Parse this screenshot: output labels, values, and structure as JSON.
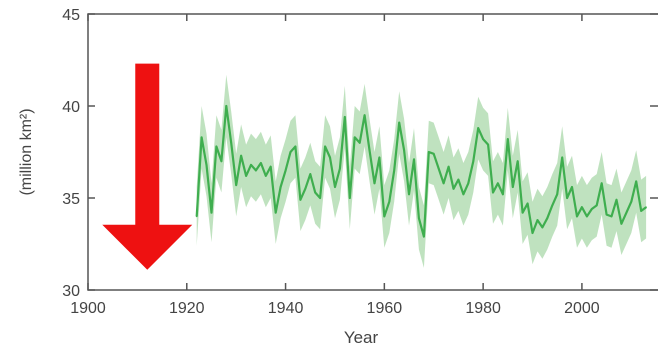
{
  "chart_data": {
    "type": "line",
    "xlabel": "Year",
    "ylabel": "(million km²)",
    "xlim": [
      1900,
      2015
    ],
    "ylim": [
      30,
      45
    ],
    "x_ticks": [
      1900,
      1920,
      1940,
      1960,
      1980,
      2000
    ],
    "y_ticks": [
      30,
      35,
      40,
      45
    ],
    "grid": false,
    "line_color": "#3fae4f",
    "band_color": "#a9d8a9",
    "arrow_color": "#ee1111",
    "series": [
      {
        "x": [
          1922,
          1923,
          1924,
          1925,
          1926,
          1927,
          1928,
          1929,
          1930,
          1931,
          1932,
          1933,
          1934,
          1935,
          1936,
          1937,
          1938,
          1939,
          1940,
          1941,
          1942,
          1943,
          1944,
          1945,
          1946,
          1947,
          1948,
          1949,
          1950,
          1951,
          1952,
          1953,
          1954,
          1955,
          1956,
          1957,
          1958,
          1959,
          1960,
          1961,
          1962,
          1963,
          1964,
          1965,
          1966,
          1967,
          1968,
          1969,
          1970,
          1971,
          1972,
          1973,
          1974,
          1975,
          1976,
          1977,
          1978,
          1979,
          1980,
          1981,
          1982,
          1983,
          1984,
          1985,
          1986,
          1987,
          1988,
          1989,
          1990,
          1991,
          1992,
          1993,
          1994,
          1995,
          1996,
          1997,
          1998,
          1999,
          2000,
          2001,
          2002,
          2003,
          2004,
          2005,
          2006,
          2007,
          2008,
          2009,
          2010,
          2011,
          2012,
          2013
        ],
        "y": [
          34.0,
          38.3,
          36.8,
          34.2,
          37.8,
          37.0,
          40.0,
          38.0,
          35.7,
          37.3,
          36.2,
          36.8,
          36.5,
          36.9,
          36.2,
          36.7,
          34.2,
          35.6,
          36.5,
          37.5,
          37.8,
          34.9,
          35.5,
          36.3,
          35.3,
          35.0,
          37.8,
          37.2,
          35.6,
          36.6,
          39.4,
          35.0,
          38.3,
          38.0,
          39.5,
          37.6,
          35.8,
          37.2,
          34.0,
          34.8,
          36.5,
          39.1,
          37.6,
          35.2,
          37.1,
          33.9,
          32.9,
          37.5,
          37.4,
          36.6,
          35.8,
          36.7,
          35.5,
          36.0,
          35.2,
          35.8,
          37.0,
          38.8,
          38.2,
          37.9,
          35.3,
          35.8,
          35.2,
          38.2,
          35.6,
          37.0,
          34.2,
          34.7,
          33.1,
          33.8,
          33.4,
          33.9,
          34.6,
          35.2,
          37.2,
          35.0,
          35.6,
          34.0,
          34.5,
          34.0,
          34.4,
          34.6,
          35.8,
          34.1,
          34.0,
          34.9,
          33.6,
          34.2,
          34.8,
          35.9,
          34.3,
          34.5
        ],
        "low": [
          32.4,
          36.6,
          35.1,
          32.6,
          36.1,
          35.3,
          38.3,
          36.3,
          34.0,
          35.6,
          34.5,
          35.1,
          34.8,
          35.2,
          34.5,
          35.0,
          32.5,
          33.9,
          34.8,
          35.8,
          36.1,
          33.2,
          33.8,
          34.6,
          33.6,
          33.3,
          36.1,
          35.5,
          33.9,
          34.9,
          37.7,
          33.3,
          36.6,
          36.3,
          37.8,
          35.9,
          34.1,
          35.5,
          32.3,
          33.1,
          34.8,
          37.4,
          35.9,
          33.5,
          35.4,
          32.2,
          31.2,
          35.8,
          35.7,
          34.9,
          34.1,
          35.0,
          33.8,
          34.3,
          33.5,
          34.1,
          35.3,
          37.1,
          36.5,
          36.2,
          33.6,
          34.1,
          33.5,
          36.5,
          33.9,
          35.3,
          32.5,
          33.0,
          31.4,
          32.1,
          31.7,
          32.2,
          32.9,
          33.5,
          35.5,
          33.3,
          33.9,
          32.3,
          32.8,
          32.3,
          32.7,
          32.9,
          34.1,
          32.4,
          32.3,
          33.2,
          31.9,
          32.5,
          33.1,
          34.2,
          32.6,
          32.8
        ],
        "high": [
          35.6,
          40.0,
          38.5,
          35.8,
          39.5,
          38.7,
          41.7,
          39.7,
          37.4,
          39.0,
          37.9,
          38.5,
          38.2,
          38.6,
          37.9,
          38.4,
          35.9,
          37.3,
          38.2,
          39.2,
          39.5,
          36.6,
          37.2,
          38.0,
          37.0,
          36.7,
          39.5,
          38.9,
          37.3,
          38.3,
          41.1,
          36.7,
          40.0,
          39.7,
          41.2,
          39.3,
          37.5,
          38.9,
          35.7,
          36.5,
          38.2,
          40.8,
          39.3,
          36.9,
          38.8,
          35.6,
          34.6,
          39.2,
          39.1,
          38.3,
          37.5,
          38.4,
          37.2,
          37.7,
          36.9,
          37.5,
          38.7,
          40.5,
          39.9,
          39.6,
          37.0,
          37.5,
          36.9,
          39.9,
          37.3,
          38.7,
          35.9,
          36.4,
          34.8,
          35.5,
          35.1,
          35.6,
          36.3,
          36.9,
          38.9,
          36.7,
          37.3,
          35.7,
          36.2,
          35.7,
          36.1,
          36.3,
          37.5,
          35.8,
          35.7,
          36.6,
          35.3,
          35.9,
          36.5,
          37.6,
          36.0,
          36.2
        ]
      }
    ],
    "annotation": {
      "type": "down-arrow",
      "x": 1912,
      "y_start": 42.3,
      "y_end": 31.1
    }
  }
}
